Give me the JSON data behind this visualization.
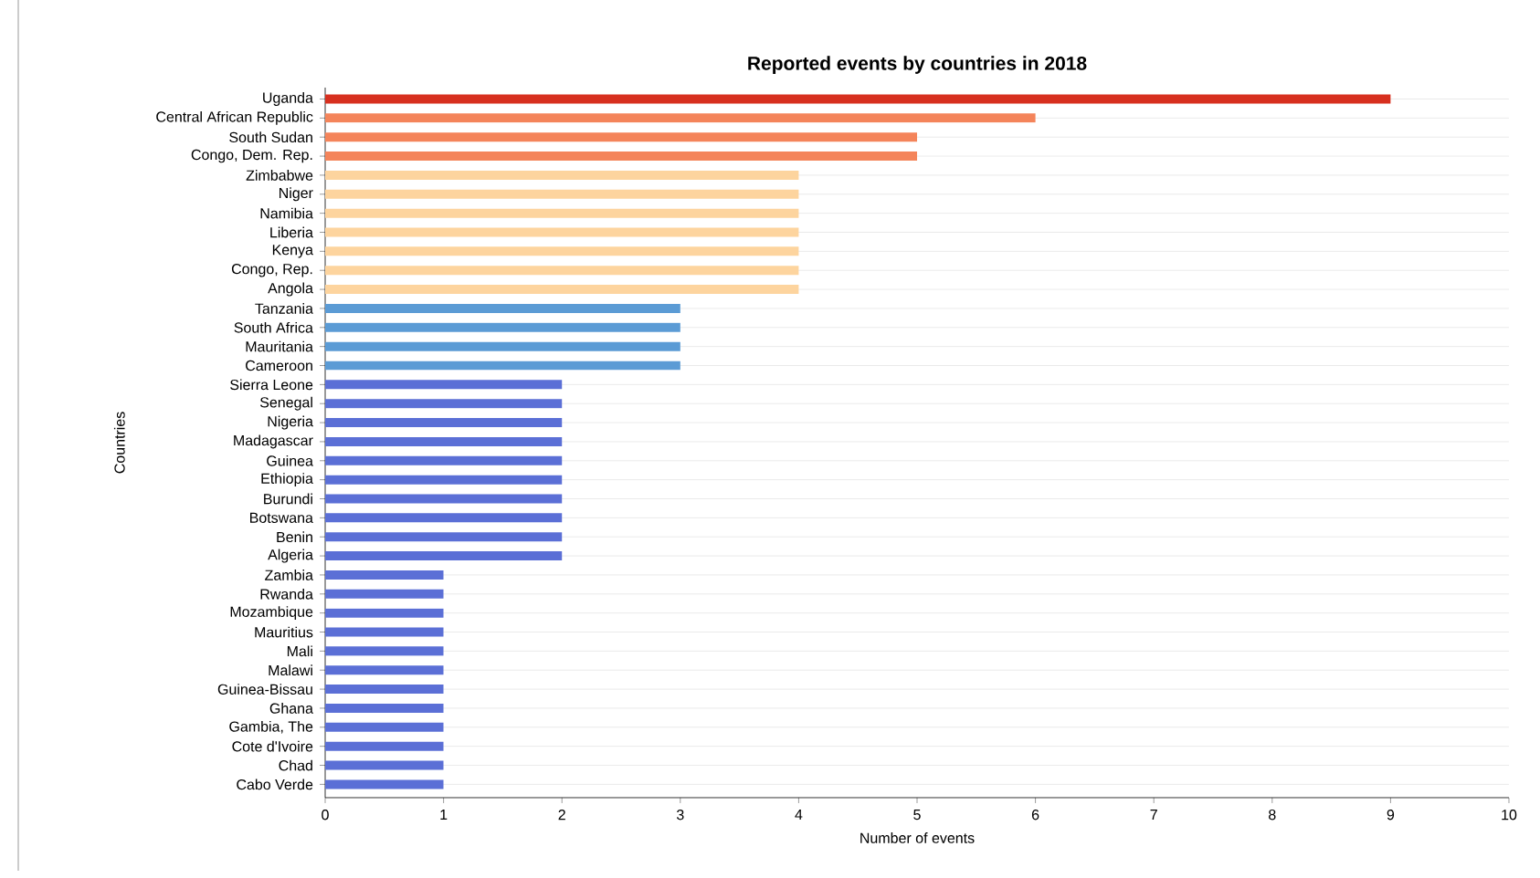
{
  "chart_data": {
    "type": "bar",
    "orientation": "horizontal",
    "title": "Reported events by countries in 2018",
    "xlabel": "Number of events",
    "ylabel": "Countries",
    "categories": [
      "Uganda",
      "Central African Republic",
      "South Sudan",
      "Congo, Dem. Rep.",
      "Zimbabwe",
      "Niger",
      "Namibia",
      "Liberia",
      "Kenya",
      "Congo, Rep.",
      "Angola",
      "Tanzania",
      "South Africa",
      "Mauritania",
      "Cameroon",
      "Sierra Leone",
      "Senegal",
      "Nigeria",
      "Madagascar",
      "Guinea",
      "Ethiopia",
      "Burundi",
      "Botswana",
      "Benin",
      "Algeria",
      "Zambia",
      "Rwanda",
      "Mozambique",
      "Mauritius",
      "Mali",
      "Malawi",
      "Guinea-Bissau",
      "Ghana",
      "Gambia, The",
      "Cote d'Ivoire",
      "Chad",
      "Cabo Verde"
    ],
    "values": [
      9,
      6,
      5,
      5,
      4,
      4,
      4,
      4,
      4,
      4,
      4,
      3,
      3,
      3,
      3,
      2,
      2,
      2,
      2,
      2,
      2,
      2,
      2,
      2,
      2,
      1,
      1,
      1,
      1,
      1,
      1,
      1,
      1,
      1,
      1,
      1,
      1
    ],
    "colors": [
      "#d7301f",
      "#f4845a",
      "#f4845a",
      "#f4845a",
      "#fdd49e",
      "#fdd49e",
      "#fdd49e",
      "#fdd49e",
      "#fdd49e",
      "#fdd49e",
      "#fdd49e",
      "#5b9bd5",
      "#5b9bd5",
      "#5b9bd5",
      "#5b9bd5",
      "#5b6fd6",
      "#5b6fd6",
      "#5b6fd6",
      "#5b6fd6",
      "#5b6fd6",
      "#5b6fd6",
      "#5b6fd6",
      "#5b6fd6",
      "#5b6fd6",
      "#5b6fd6",
      "#5b6fd6",
      "#5b6fd6",
      "#5b6fd6",
      "#5b6fd6",
      "#5b6fd6",
      "#5b6fd6",
      "#5b6fd6",
      "#5b6fd6",
      "#5b6fd6",
      "#5b6fd6",
      "#5b6fd6",
      "#5b6fd6"
    ],
    "xlim": [
      0,
      10
    ],
    "xticks": [
      0,
      1,
      2,
      3,
      4,
      5,
      6,
      7,
      8,
      9,
      10
    ],
    "grid": "y"
  }
}
